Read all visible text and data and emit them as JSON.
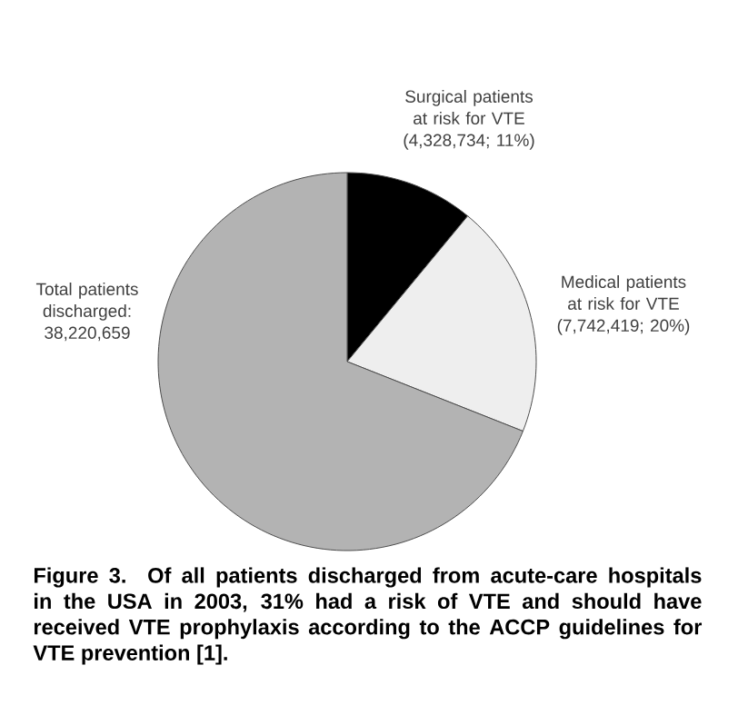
{
  "chart_data": {
    "type": "pie",
    "categories": [
      "Surgical patients at risk for VTE (4,328,734; 11%)",
      "Medical patients at risk for VTE (7,742,419; 20%)",
      "Total patients discharged: 38,220,659"
    ],
    "values": [
      11,
      20,
      69
    ],
    "colors": [
      "#000000",
      "#eeeeee",
      "#b3b3b3"
    ],
    "annotations": [
      "**Figure 3.  Of all patients discharged from acute-care hospitals in the USA in 2003, 31% had a risk of VTE and should have received VTE prophylaxis according to the ACCP guidelines for VTE prevention [1].**"
    ]
  }
}
